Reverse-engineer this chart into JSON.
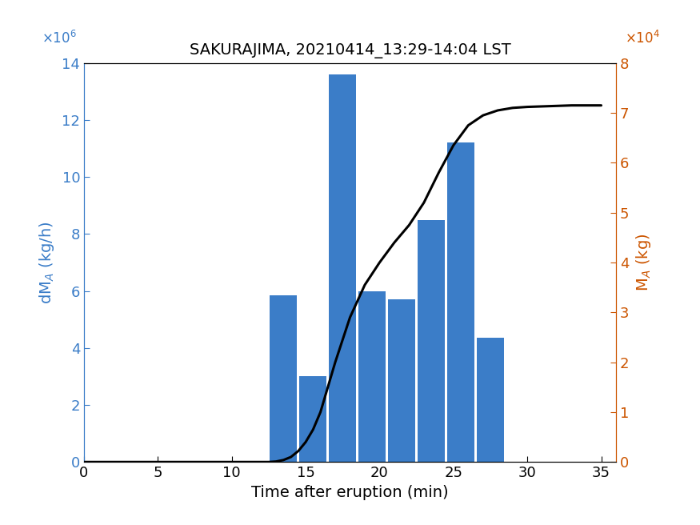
{
  "title": "SAKURAJIMA, 20210414_13:29-14:04 LST",
  "xlabel": "Time after eruption (min)",
  "ylabel_left": "dMₐ (kg/h)",
  "ylabel_right": "Mₐ (kg)",
  "bar_centers": [
    13.5,
    15.5,
    17.5,
    19.5,
    21.5,
    23.5,
    25.5,
    27.5
  ],
  "bar_heights": [
    5850000,
    3000000,
    13600000,
    6000000,
    5700000,
    8500000,
    11200000,
    4350000
  ],
  "bar_width": 1.85,
  "bar_color": "#3b7dc8",
  "line_x": [
    0,
    5,
    10,
    12.5,
    13.0,
    13.5,
    14.0,
    14.5,
    15.0,
    15.5,
    16.0,
    16.5,
    17.0,
    18.0,
    19.0,
    20.0,
    21.0,
    22.0,
    23.0,
    24.0,
    25.0,
    26.0,
    27.0,
    28.0,
    29.0,
    30.0,
    31.0,
    33.0,
    35.0
  ],
  "line_y": [
    0,
    0,
    0,
    0,
    100,
    400,
    1000,
    2200,
    4000,
    6500,
    10000,
    15000,
    20000,
    29000,
    35500,
    40000,
    44000,
    47500,
    52000,
    58000,
    63500,
    67500,
    69500,
    70500,
    71000,
    71200,
    71300,
    71500,
    71500
  ],
  "line_color": "#000000",
  "line_width": 2.2,
  "xlim": [
    0,
    36
  ],
  "ylim_left": [
    0,
    14000000
  ],
  "ylim_right": [
    0,
    80000
  ],
  "xticks": [
    0,
    5,
    10,
    15,
    20,
    25,
    30,
    35
  ],
  "yticks_left": [
    0,
    2000000,
    4000000,
    6000000,
    8000000,
    10000000,
    12000000,
    14000000
  ],
  "yticks_right": [
    0,
    10000,
    20000,
    30000,
    40000,
    50000,
    60000,
    70000,
    80000
  ],
  "ytick_labels_right": [
    "0",
    "1",
    "2",
    "3",
    "4",
    "5",
    "6",
    "7",
    "8"
  ],
  "color_left": "#3b7dc8",
  "color_right": "#cc5500",
  "bg_color": "#ffffff",
  "figsize": [
    8.75,
    6.56
  ],
  "dpi": 100
}
